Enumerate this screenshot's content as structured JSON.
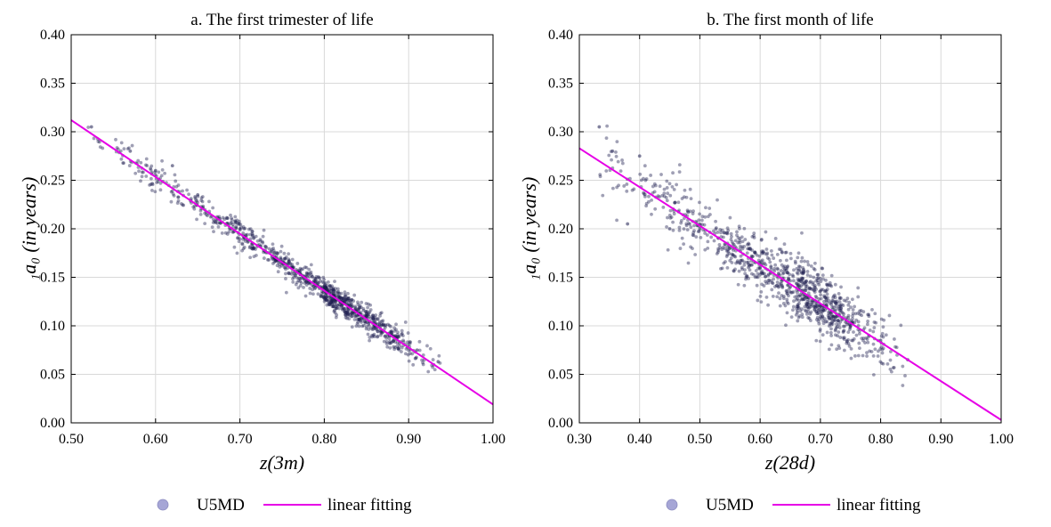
{
  "colors": {
    "points": "#1c1c4e",
    "legend_marker": "#a6a6d6",
    "fit_line": "#e600e6",
    "grid": "#d9d9d9",
    "axes": "#000000"
  },
  "chart_data": [
    {
      "type": "scatter",
      "title": "a. The first trimester of life",
      "xlabel": "z(3m)",
      "ylabel": "1a0 (in years)",
      "xlim": [
        0.5,
        1.0
      ],
      "ylim": [
        0.0,
        0.4
      ],
      "xticks": [
        "0.50",
        "0.60",
        "0.70",
        "0.80",
        "0.90",
        "1.00"
      ],
      "yticks": [
        "0.00",
        "0.05",
        "0.10",
        "0.15",
        "0.20",
        "0.25",
        "0.30",
        "0.35",
        "0.40"
      ],
      "grid": true,
      "legend_position": "bottom",
      "legend": [
        "U5MD",
        "linear fitting"
      ],
      "series": [
        {
          "name": "U5MD",
          "type": "scatter",
          "approx_point_count": 1000,
          "x_range": [
            0.52,
            0.94
          ],
          "cloud_center_x": 0.8,
          "y_spread_sd": 0.007,
          "sample_points": [
            [
              0.524,
              0.305
            ],
            [
              0.57,
              0.28
            ],
            [
              0.6,
              0.26
            ],
            [
              0.62,
              0.265
            ],
            [
              0.65,
              0.235
            ],
            [
              0.7,
              0.2
            ],
            [
              0.75,
              0.165
            ],
            [
              0.8,
              0.14
            ],
            [
              0.85,
              0.11
            ],
            [
              0.88,
              0.09
            ],
            [
              0.91,
              0.075
            ],
            [
              0.935,
              0.063
            ]
          ]
        },
        {
          "name": "linear fitting",
          "type": "line",
          "x": [
            0.5,
            1.0
          ],
          "y": [
            0.312,
            0.019
          ]
        }
      ]
    },
    {
      "type": "scatter",
      "title": "b. The first month of life",
      "xlabel": "z(28d)",
      "ylabel": "1a0 (in years)",
      "xlim": [
        0.3,
        1.0
      ],
      "ylim": [
        0.0,
        0.4
      ],
      "xticks": [
        "0.30",
        "0.40",
        "0.50",
        "0.60",
        "0.70",
        "0.80",
        "0.90",
        "1.00"
      ],
      "yticks": [
        "0.00",
        "0.05",
        "0.10",
        "0.15",
        "0.20",
        "0.25",
        "0.30",
        "0.35",
        "0.40"
      ],
      "grid": true,
      "legend_position": "bottom",
      "legend": [
        "U5MD",
        "linear fitting"
      ],
      "series": [
        {
          "name": "U5MD",
          "type": "scatter",
          "approx_point_count": 1000,
          "x_range": [
            0.33,
            0.85
          ],
          "cloud_center_x": 0.66,
          "y_spread_sd": 0.016,
          "sample_points": [
            [
              0.333,
              0.305
            ],
            [
              0.355,
              0.28
            ],
            [
              0.38,
              0.205
            ],
            [
              0.4,
              0.275
            ],
            [
              0.45,
              0.2
            ],
            [
              0.5,
              0.2
            ],
            [
              0.55,
              0.18
            ],
            [
              0.6,
              0.16
            ],
            [
              0.65,
              0.14
            ],
            [
              0.7,
              0.12
            ],
            [
              0.75,
              0.1
            ],
            [
              0.8,
              0.085
            ],
            [
              0.845,
              0.065
            ]
          ]
        },
        {
          "name": "linear fitting",
          "type": "line",
          "x": [
            0.3,
            1.0
          ],
          "y": [
            0.283,
            0.003
          ]
        }
      ]
    }
  ]
}
